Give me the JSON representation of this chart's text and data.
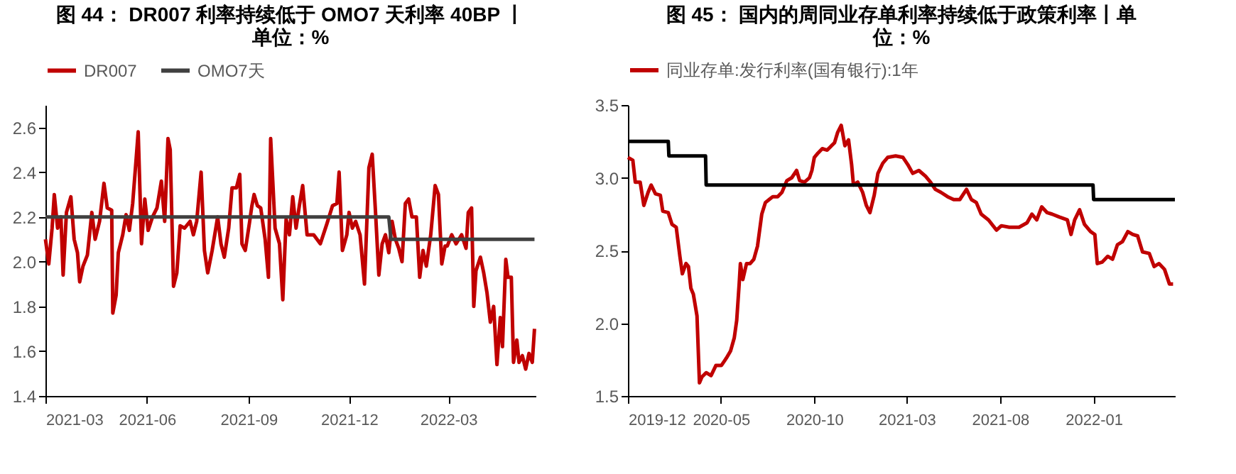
{
  "chart_data": [
    {
      "type": "line",
      "title": "图 44：  DR007 利率持续低于 OMO7 天利率 40BP 丨单位：%",
      "legend": "top",
      "grid": false,
      "xlim": [
        "2021-03-01",
        "2022-05-19"
      ],
      "xticks": [
        "2021-03",
        "2021-06",
        "2021-09",
        "2021-12",
        "2022-03"
      ],
      "ylim": [
        1.4,
        2.7
      ],
      "yticks": [
        {
          "value": 1.4,
          "label": "1.4"
        },
        {
          "value": 1.6,
          "label": "1.6"
        },
        {
          "value": 1.8,
          "label": "1.8"
        },
        {
          "value": 2.0,
          "label": "2.0"
        },
        {
          "value": 2.2,
          "label": "2.2"
        },
        {
          "value": 2.4,
          "label": "2.4"
        },
        {
          "value": 2.6,
          "label": "2.6"
        }
      ],
      "series": [
        {
          "name": "DR007",
          "color": "#c00000",
          "x": [
            "2021-03-01",
            "2021-03-04",
            "2021-03-07",
            "2021-03-09",
            "2021-03-12",
            "2021-03-15",
            "2021-03-17",
            "2021-03-20",
            "2021-03-24",
            "2021-03-27",
            "2021-03-30",
            "2021-04-01",
            "2021-04-04",
            "2021-04-08",
            "2021-04-12",
            "2021-04-15",
            "2021-04-19",
            "2021-04-23",
            "2021-04-26",
            "2021-04-30",
            "2021-05-01",
            "2021-05-04",
            "2021-05-06",
            "2021-05-10",
            "2021-05-13",
            "2021-05-16",
            "2021-05-19",
            "2021-05-22",
            "2021-05-24",
            "2021-05-27",
            "2021-05-30",
            "2021-06-02",
            "2021-06-06",
            "2021-06-10",
            "2021-06-14",
            "2021-06-17",
            "2021-06-20",
            "2021-06-22",
            "2021-06-25",
            "2021-06-28",
            "2021-07-01",
            "2021-07-05",
            "2021-07-10",
            "2021-07-13",
            "2021-07-16",
            "2021-07-20",
            "2021-07-23",
            "2021-07-26",
            "2021-07-30",
            "2021-08-04",
            "2021-08-07",
            "2021-08-10",
            "2021-08-14",
            "2021-08-17",
            "2021-08-21",
            "2021-08-24",
            "2021-08-26",
            "2021-08-29",
            "2021-09-02",
            "2021-09-04",
            "2021-09-06",
            "2021-09-09",
            "2021-09-12",
            "2021-09-16",
            "2021-09-19",
            "2021-09-21",
            "2021-09-25",
            "2021-09-29",
            "2021-10-02",
            "2021-10-05",
            "2021-10-08",
            "2021-10-11",
            "2021-10-14",
            "2021-10-17",
            "2021-10-20",
            "2021-10-24",
            "2021-10-30",
            "2021-11-05",
            "2021-11-11",
            "2021-11-16",
            "2021-11-20",
            "2021-11-22",
            "2021-11-25",
            "2021-11-29",
            "2021-12-01",
            "2021-12-04",
            "2021-12-07",
            "2021-12-11",
            "2021-12-15",
            "2021-12-19",
            "2021-12-22",
            "2021-12-25",
            "2021-12-28",
            "2021-12-31",
            "2022-01-03",
            "2022-01-06",
            "2022-01-09",
            "2022-01-12",
            "2022-01-15",
            "2022-01-18",
            "2022-01-21",
            "2022-01-24",
            "2022-01-27",
            "2022-01-31",
            "2022-02-03",
            "2022-02-06",
            "2022-02-09",
            "2022-02-13",
            "2022-02-17",
            "2022-02-20",
            "2022-02-23",
            "2022-02-26",
            "2022-02-28",
            "2022-03-04",
            "2022-03-08",
            "2022-03-13",
            "2022-03-17",
            "2022-03-19",
            "2022-03-22",
            "2022-03-24",
            "2022-03-26",
            "2022-03-30",
            "2022-04-02",
            "2022-04-05",
            "2022-04-08",
            "2022-04-11",
            "2022-04-14",
            "2022-04-17",
            "2022-04-19",
            "2022-04-22",
            "2022-04-24",
            "2022-04-27",
            "2022-04-29",
            "2022-05-02",
            "2022-05-04",
            "2022-05-07",
            "2022-05-10",
            "2022-05-13",
            "2022-05-16",
            "2022-05-18"
          ],
          "values": [
            2.1,
            1.99,
            2.15,
            2.3,
            2.15,
            2.2,
            1.94,
            2.22,
            2.29,
            2.1,
            2.04,
            1.91,
            1.98,
            2.03,
            2.22,
            2.1,
            2.18,
            2.35,
            2.24,
            2.23,
            1.77,
            1.85,
            2.04,
            2.12,
            2.21,
            2.14,
            2.26,
            2.45,
            2.58,
            2.08,
            2.28,
            2.14,
            2.2,
            2.24,
            2.36,
            2.18,
            2.55,
            2.5,
            1.89,
            1.95,
            2.16,
            2.15,
            2.18,
            2.12,
            2.18,
            2.4,
            2.05,
            1.95,
            2.05,
            2.2,
            2.08,
            2.02,
            2.15,
            2.33,
            2.33,
            2.39,
            2.08,
            2.05,
            2.18,
            2.25,
            2.3,
            2.25,
            2.24,
            2.1,
            1.93,
            2.55,
            2.15,
            2.08,
            1.83,
            2.19,
            2.12,
            2.29,
            2.15,
            2.25,
            2.34,
            2.12,
            2.12,
            2.08,
            2.17,
            2.25,
            2.26,
            2.4,
            2.05,
            2.12,
            2.22,
            2.15,
            2.18,
            2.12,
            1.9,
            2.42,
            2.48,
            2.22,
            1.94,
            2.08,
            2.12,
            2.04,
            2.18,
            2.1,
            2.06,
            2.0,
            2.26,
            2.28,
            2.2,
            2.2,
            1.93,
            2.05,
            1.98,
            2.12,
            2.34,
            2.3,
            1.99,
            2.07,
            2.07,
            2.12,
            2.08,
            2.12,
            2.06,
            2.22,
            2.24,
            1.8,
            1.96,
            2.02,
            1.95,
            1.86,
            1.73,
            1.8,
            1.54,
            1.75,
            1.62,
            2.01,
            1.93,
            1.93,
            1.55,
            1.65,
            1.55,
            1.58,
            1.52,
            1.59,
            1.55,
            1.7
          ]
        },
        {
          "name": "OMO7天",
          "color": "#404040",
          "x": [
            "2021-03-01",
            "2022-01-06",
            "2022-01-08",
            "2022-05-18"
          ],
          "values": [
            2.2,
            2.2,
            2.1,
            2.1
          ]
        }
      ]
    },
    {
      "type": "line",
      "title": "图 45：  国内的周同业存单利率持续低于政策利率丨单位：%",
      "legend": "top",
      "grid": false,
      "xlim": [
        "2019-12-01",
        "2022-05-14"
      ],
      "xticks": [
        "2019-12",
        "2020-05",
        "2020-10",
        "2021-03",
        "2021-08",
        "2022-01"
      ],
      "ylim": [
        1.5,
        3.5
      ],
      "yticks": [
        {
          "value": 1.5,
          "label": "1.5"
        },
        {
          "value": 2.0,
          "label": "2.0"
        },
        {
          "value": 2.5,
          "label": "2.5"
        },
        {
          "value": 3.0,
          "label": "3.0"
        },
        {
          "value": 3.5,
          "label": "3.5"
        }
      ],
      "series": [
        {
          "name": "同业存单:发行利率(国有银行):1年",
          "color": "#c00000",
          "x": [
            "2019-12-01",
            "2019-12-09",
            "2019-12-13",
            "2019-12-21",
            "2019-12-27",
            "2020-01-03",
            "2020-01-08",
            "2020-01-15",
            "2020-01-23",
            "2020-01-27",
            "2020-02-05",
            "2020-02-11",
            "2020-02-18",
            "2020-02-24",
            "2020-02-28",
            "2020-03-05",
            "2020-03-09",
            "2020-03-13",
            "2020-03-17",
            "2020-03-23",
            "2020-03-27",
            "2020-03-31",
            "2020-04-07",
            "2020-04-15",
            "2020-04-23",
            "2020-05-02",
            "2020-05-10",
            "2020-05-17",
            "2020-05-23",
            "2020-05-27",
            "2020-05-31",
            "2020-06-02",
            "2020-06-06",
            "2020-06-12",
            "2020-06-18",
            "2020-06-24",
            "2020-06-30",
            "2020-07-07",
            "2020-07-13",
            "2020-07-19",
            "2020-07-25",
            "2020-08-02",
            "2020-08-09",
            "2020-08-17",
            "2020-08-25",
            "2020-09-02",
            "2020-09-07",
            "2020-09-15",
            "2020-09-23",
            "2020-09-27",
            "2020-10-01",
            "2020-10-07",
            "2020-10-14",
            "2020-10-22",
            "2020-10-29",
            "2020-11-03",
            "2020-11-08",
            "2020-11-14",
            "2020-11-20",
            "2020-11-26",
            "2020-12-01",
            "2020-12-04",
            "2020-12-11",
            "2020-12-19",
            "2020-12-25",
            "2020-12-31",
            "2021-01-07",
            "2021-01-13",
            "2021-01-21",
            "2021-01-29",
            "2021-02-11",
            "2021-02-23",
            "2021-03-03",
            "2021-03-11",
            "2021-03-21",
            "2021-04-01",
            "2021-04-09",
            "2021-04-17",
            "2021-04-26",
            "2021-05-07",
            "2021-05-17",
            "2021-05-27",
            "2021-06-07",
            "2021-06-15",
            "2021-06-23",
            "2021-07-01",
            "2021-07-13",
            "2021-07-26",
            "2021-08-03",
            "2021-08-16",
            "2021-09-01",
            "2021-09-14",
            "2021-09-22",
            "2021-09-30",
            "2021-10-08",
            "2021-10-17",
            "2021-10-25",
            "2021-11-06",
            "2021-11-19",
            "2021-11-25",
            "2021-12-01",
            "2021-12-09",
            "2021-12-17",
            "2021-12-27",
            "2022-01-03",
            "2022-01-07",
            "2022-01-15",
            "2022-01-24",
            "2022-02-01",
            "2022-02-09",
            "2022-02-17",
            "2022-02-26",
            "2022-03-06",
            "2022-03-14",
            "2022-03-22",
            "2022-04-02",
            "2022-04-10",
            "2022-04-18",
            "2022-04-27",
            "2022-05-05",
            "2022-05-11"
          ],
          "values": [
            3.14,
            3.12,
            2.97,
            2.97,
            2.81,
            2.9,
            2.95,
            2.89,
            2.88,
            2.77,
            2.76,
            2.68,
            2.66,
            2.46,
            2.34,
            2.41,
            2.39,
            2.24,
            2.2,
            2.05,
            1.59,
            1.63,
            1.66,
            1.64,
            1.71,
            1.71,
            1.76,
            1.81,
            1.9,
            2.02,
            2.27,
            2.41,
            2.3,
            2.41,
            2.41,
            2.44,
            2.53,
            2.75,
            2.83,
            2.85,
            2.87,
            2.87,
            2.9,
            2.98,
            3.0,
            3.05,
            2.98,
            2.97,
            3.0,
            3.05,
            3.14,
            3.17,
            3.2,
            3.19,
            3.22,
            3.24,
            3.31,
            3.36,
            3.22,
            3.26,
            3.09,
            2.95,
            2.97,
            2.9,
            2.81,
            2.76,
            2.88,
            3.03,
            3.1,
            3.14,
            3.15,
            3.14,
            3.09,
            3.03,
            3.05,
            3.01,
            2.97,
            2.92,
            2.9,
            2.87,
            2.85,
            2.85,
            2.92,
            2.85,
            2.83,
            2.75,
            2.71,
            2.64,
            2.67,
            2.66,
            2.66,
            2.69,
            2.75,
            2.71,
            2.8,
            2.76,
            2.75,
            2.73,
            2.71,
            2.61,
            2.71,
            2.78,
            2.68,
            2.63,
            2.61,
            2.41,
            2.42,
            2.46,
            2.44,
            2.54,
            2.56,
            2.63,
            2.61,
            2.6,
            2.49,
            2.48,
            2.39,
            2.41,
            2.37,
            2.27,
            2.27
          ]
        },
        {
          "color": "#000000",
          "x": [
            "2019-12-01",
            "2020-02-05",
            "2020-02-06",
            "2020-04-06",
            "2020-04-07",
            "2021-12-31",
            "2022-01-01",
            "2022-05-14"
          ],
          "values": [
            3.25,
            3.25,
            3.15,
            3.15,
            2.95,
            2.95,
            2.85,
            2.85
          ]
        }
      ]
    }
  ]
}
